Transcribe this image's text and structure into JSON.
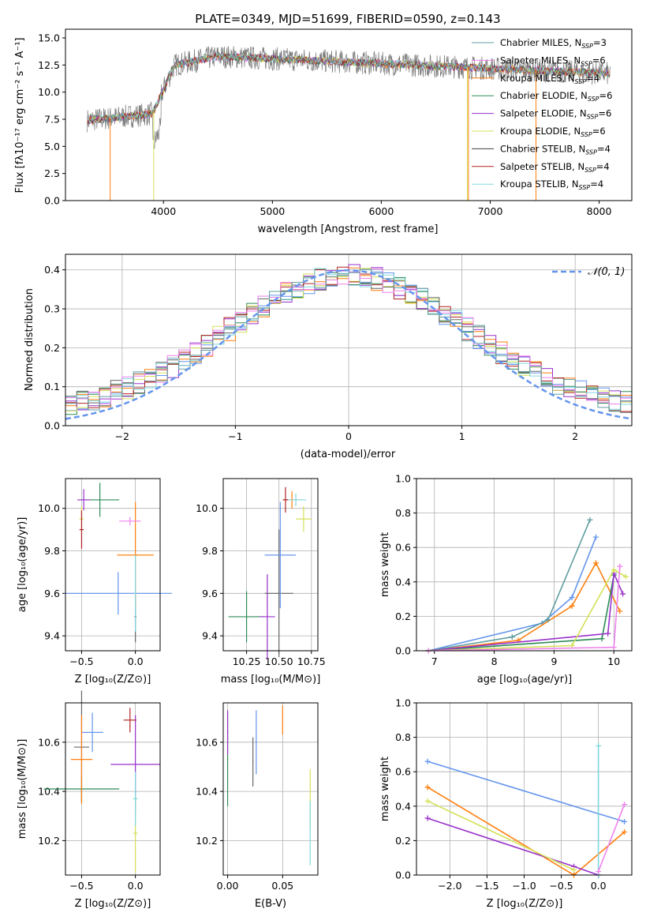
{
  "colors": [
    "#6495ed",
    "#ff7f0e",
    "#2e8b57",
    "#9932cc",
    "#d4e157",
    "#666666",
    "#b22222",
    "#80d8e0",
    "#ee82ee"
  ],
  "panel1": {
    "title": "PLATE=0349, MJD=51699, FIBERID=0590, z=0.143",
    "xlabel": "wavelength [Angstrom, rest frame]",
    "ylabel": "Flux [fλ10⁻¹⁷ erg cm⁻² s⁻¹ A⁻¹]",
    "xticks": [
      "4000",
      "5000",
      "6000",
      "7000",
      "8000"
    ],
    "yticks": [
      "0.0",
      "2.5",
      "5.0",
      "7.5",
      "10.0",
      "12.5",
      "15.0"
    ],
    "legend": [
      {
        "label": "Chabrier MILES, N",
        "sub": "SSP",
        "val": "=3",
        "color": "#5f9ea0"
      },
      {
        "label": "Salpeter MILES, N",
        "sub": "SSP",
        "val": "=6",
        "color": "#ee82ee"
      },
      {
        "label": "Kroupa MILES, N",
        "sub": "SSP",
        "val": "=4",
        "color": "#ff7f0e"
      },
      {
        "label": "Chabrier ELODIE, N",
        "sub": "SSP",
        "val": "=6",
        "color": "#2e8b57"
      },
      {
        "label": "Salpeter ELODIE, N",
        "sub": "SSP",
        "val": "=6",
        "color": "#9932cc"
      },
      {
        "label": "Kroupa ELODIE, N",
        "sub": "SSP",
        "val": "=6",
        "color": "#d4e157"
      },
      {
        "label": "Chabrier STELIB, N",
        "sub": "SSP",
        "val": "=4",
        "color": "#404040"
      },
      {
        "label": "Salpeter STELIB, N",
        "sub": "SSP",
        "val": "=4",
        "color": "#b22222"
      },
      {
        "label": "Kroupa STELIB, N",
        "sub": "SSP",
        "val": "=4",
        "color": "#80d8e0"
      }
    ]
  },
  "panel2": {
    "xlabel": "(data-model)/error",
    "ylabel": "Normed distribution",
    "xticks": [
      "−2",
      "−1",
      "0",
      "1",
      "2"
    ],
    "yticks": [
      "0.0",
      "0.1",
      "0.2",
      "0.3",
      "0.4"
    ],
    "legend": "𝒩(0, 1)"
  },
  "panel3": {
    "xlabel": "Z [log₁₀(Z/Z⊙)]",
    "ylabel": "age  [log₁₀(age/yr)]",
    "xticks": [
      "−0.5",
      "0.0"
    ],
    "yticks": [
      "9.4",
      "9.6",
      "9.8",
      "10.0"
    ]
  },
  "panel4": {
    "xlabel": "mass [log₁₀(M/M⊙)]",
    "xticks": [
      "10.25",
      "10.50",
      "10.75"
    ],
    "yticks": [
      "9.4",
      "9.6",
      "9.8",
      "10.0"
    ]
  },
  "panel5": {
    "xlabel": "age  [log₁₀(age/yr)]",
    "ylabel": "mass weight",
    "xticks": [
      "7",
      "8",
      "9",
      "10"
    ],
    "yticks": [
      "0.0",
      "0.2",
      "0.4",
      "0.6",
      "0.8",
      "1.0"
    ]
  },
  "panel6": {
    "xlabel": "Z [log₁₀(Z/Z⊙)]",
    "ylabel": "mass [log₁₀(M/M⊙)]",
    "xticks": [
      "−0.5",
      "0.0"
    ],
    "yticks": [
      "10.2",
      "10.4",
      "10.6"
    ]
  },
  "panel7": {
    "xlabel": "E(B-V)",
    "xticks": [
      "0.00",
      "0.05"
    ],
    "yticks": [
      "10.2",
      "10.4",
      "10.6"
    ]
  },
  "panel8": {
    "xlabel": "Z [log₁₀(Z/Z⊙)]",
    "ylabel": "mass weight",
    "xticks": [
      "−2.0",
      "−1.5",
      "−1.0",
      "−0.5",
      "0.0"
    ],
    "yticks": [
      "0.0",
      "0.2",
      "0.4",
      "0.6",
      "0.8",
      "1.0"
    ]
  },
  "chart_data": [
    {
      "type": "line",
      "panel": "spectrum",
      "xlim": [
        3100,
        8300
      ],
      "ylim": [
        0,
        15.8
      ],
      "series_note": "9 SSP model fits overlaid on observed flux; flux ~7.5 at 3300A rising to ~13 at 4500A, ~12 at 8000A"
    },
    {
      "type": "bar",
      "panel": "residual histogram",
      "xlim": [
        -2.5,
        2.5
      ],
      "ylim": [
        0,
        0.44
      ],
      "bins": [
        -2.4,
        -2.2,
        -2.0,
        -1.8,
        -1.6,
        -1.4,
        -1.2,
        -1.0,
        -0.8,
        -0.6,
        -0.4,
        -0.2,
        0.0,
        0.2,
        0.4,
        0.6,
        0.8,
        1.0,
        1.2,
        1.4,
        1.6,
        1.8,
        2.0,
        2.2,
        2.4
      ],
      "reference": "N(0,1)"
    },
    {
      "type": "scatter",
      "panel": "age vs Z",
      "xlim": [
        -0.65,
        0.23
      ],
      "ylim": [
        9.33,
        10.14
      ],
      "points": [
        {
          "x": -0.33,
          "y": 10.04
        },
        {
          "x": -0.48,
          "y": 10.04
        },
        {
          "x": 0.0,
          "y": 9.49
        },
        {
          "x": -0.16,
          "y": 9.6
        },
        {
          "x": 0.0,
          "y": 9.78
        },
        {
          "x": -0.5,
          "y": 9.95
        },
        {
          "x": 0.0,
          "y": 9.6
        },
        {
          "x": -0.5,
          "y": 9.9
        },
        {
          "x": -0.05,
          "y": 9.94
        }
      ]
    },
    {
      "type": "scatter",
      "panel": "age vs mass",
      "xlim": [
        10.07,
        10.8
      ],
      "ylim": [
        9.33,
        10.14
      ],
      "points": [
        {
          "x": 10.25,
          "y": 9.49
        },
        {
          "x": 10.41,
          "y": 9.49
        },
        {
          "x": 10.5,
          "y": 9.6
        },
        {
          "x": 10.51,
          "y": 9.78
        },
        {
          "x": 10.6,
          "y": 10.04
        },
        {
          "x": 10.69,
          "y": 9.95
        },
        {
          "x": 10.63,
          "y": 10.04
        },
        {
          "x": 10.55,
          "y": 10.04
        }
      ]
    },
    {
      "type": "line",
      "panel": "mass weight vs age",
      "xlim": [
        6.7,
        10.3
      ],
      "ylim": [
        0,
        1
      ],
      "series": [
        {
          "color": "#6495ed",
          "x": [
            6.9,
            8.8,
            9.3,
            9.7
          ],
          "y": [
            0.0,
            0.16,
            0.31,
            0.66
          ]
        },
        {
          "color": "#ff7f0e",
          "x": [
            6.9,
            8.4,
            9.3,
            9.7,
            10.1
          ],
          "y": [
            0.0,
            0.06,
            0.26,
            0.51,
            0.23
          ]
        },
        {
          "color": "#5f9ea0",
          "x": [
            6.9,
            8.3,
            8.9,
            9.6
          ],
          "y": [
            0.0,
            0.08,
            0.18,
            0.76
          ]
        },
        {
          "color": "#2e8b57",
          "x": [
            6.9,
            9.8,
            10.0
          ],
          "y": [
            0.0,
            0.07,
            0.44
          ]
        },
        {
          "color": "#9932cc",
          "x": [
            6.9,
            9.9,
            10.0,
            10.15
          ],
          "y": [
            0.0,
            0.1,
            0.45,
            0.33
          ]
        },
        {
          "color": "#d4e157",
          "x": [
            6.9,
            9.3,
            10.0,
            10.2
          ],
          "y": [
            0.0,
            0.03,
            0.47,
            0.43
          ]
        },
        {
          "color": "#ee82ee",
          "x": [
            6.9,
            10.0,
            10.1
          ],
          "y": [
            0.0,
            0.02,
            0.49
          ]
        }
      ]
    },
    {
      "type": "scatter",
      "panel": "mass vs Z",
      "xlim": [
        -0.65,
        0.23
      ],
      "ylim": [
        10.06,
        10.76
      ],
      "points": [
        {
          "x": -0.5,
          "y": 10.41
        },
        {
          "x": 0.0,
          "y": 10.51
        },
        {
          "x": -0.5,
          "y": 10.58
        },
        {
          "x": -0.4,
          "y": 10.64
        },
        {
          "x": -0.5,
          "y": 10.53
        },
        {
          "x": 0.0,
          "y": 10.23
        },
        {
          "x": 0.0,
          "y": 10.37
        },
        {
          "x": -0.05,
          "y": 10.69
        }
      ]
    },
    {
      "type": "scatter",
      "panel": "mass vs E(B-V)",
      "xlim": [
        -0.004,
        0.082
      ],
      "ylim": [
        10.06,
        10.76
      ],
      "points": [
        {
          "x": 0.0,
          "y": 10.53
        },
        {
          "x": 0.0,
          "y": 10.64
        },
        {
          "x": 0.023,
          "y": 10.52
        },
        {
          "x": 0.026,
          "y": 10.6
        },
        {
          "x": 0.05,
          "y": 10.69
        },
        {
          "x": 0.075,
          "y": 10.37
        },
        {
          "x": 0.075,
          "y": 10.23
        }
      ]
    },
    {
      "type": "line",
      "panel": "mass weight vs Z",
      "xlim": [
        -2.45,
        0.45
      ],
      "ylim": [
        0,
        1
      ],
      "series": [
        {
          "color": "#6495ed",
          "x": [
            -2.3,
            0.35
          ],
          "y": [
            0.66,
            0.31
          ]
        },
        {
          "color": "#ff7f0e",
          "x": [
            -2.3,
            -0.33,
            0.35
          ],
          "y": [
            0.51,
            0.0,
            0.25
          ]
        },
        {
          "color": "#9932cc",
          "x": [
            -2.3,
            -0.33,
            0.0
          ],
          "y": [
            0.33,
            0.05,
            0.0
          ]
        },
        {
          "color": "#d4e157",
          "x": [
            -2.3,
            -0.33
          ],
          "y": [
            0.43,
            0.03
          ]
        },
        {
          "color": "#80d8e0",
          "x": [
            0.0,
            0.0
          ],
          "y": [
            0.0,
            0.75
          ]
        },
        {
          "color": "#ee82ee",
          "x": [
            0.0,
            0.35
          ],
          "y": [
            0.02,
            0.41
          ]
        }
      ]
    }
  ]
}
